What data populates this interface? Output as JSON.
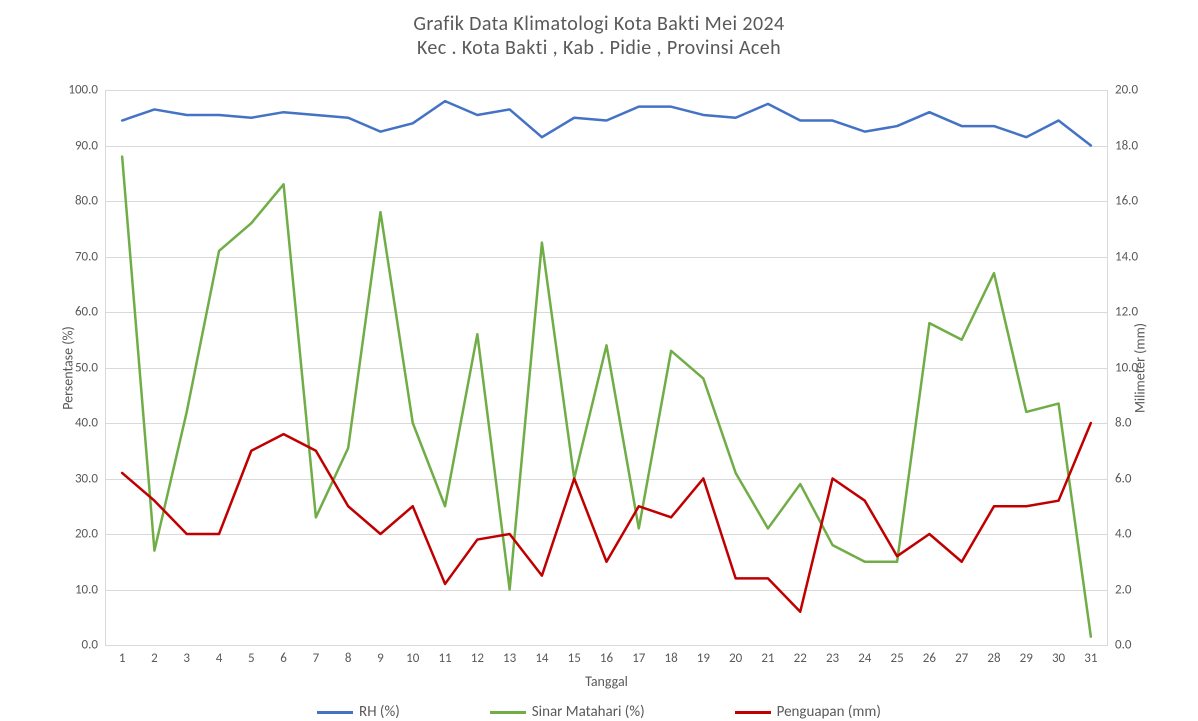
{
  "chart": {
    "type": "line",
    "background_color": "#ffffff",
    "grid_color": "#d9d9d9",
    "axis_color": "#d9d9d9",
    "title_line1": "Grafik Data Klimatologi Kota Bakti Mei 2024",
    "title_line2": "Kec . Kota Bakti , Kab . Pidie , Provinsi  Aceh",
    "title_fontsize": 20,
    "title_color": "#595959",
    "x_axis": {
      "label": "Tanggal",
      "label_fontsize": 14,
      "tick_fontsize": 13,
      "categories": [
        1,
        2,
        3,
        4,
        5,
        6,
        7,
        8,
        9,
        10,
        11,
        12,
        13,
        14,
        15,
        16,
        17,
        18,
        19,
        20,
        21,
        22,
        23,
        24,
        25,
        26,
        27,
        28,
        29,
        30,
        31
      ]
    },
    "y_axis_left": {
      "label": "Persentase (%)",
      "label_fontsize": 14,
      "min": 0.0,
      "max": 100.0,
      "step": 10.0,
      "tick_fontsize": 13,
      "ticks": [
        "0.0",
        "10.0",
        "20.0",
        "30.0",
        "40.0",
        "50.0",
        "60.0",
        "70.0",
        "80.0",
        "90.0",
        "100.0"
      ]
    },
    "y_axis_right": {
      "label": "Milimeter (mm)",
      "label_fontsize": 14,
      "min": 0.0,
      "max": 20.0,
      "step": 2.0,
      "tick_fontsize": 13,
      "ticks": [
        "0.0",
        "2.0",
        "4.0",
        "6.0",
        "8.0",
        "10.0",
        "12.0",
        "14.0",
        "16.0",
        "18.0",
        "20.0"
      ]
    },
    "series": [
      {
        "name": "RH (%)",
        "axis": "left",
        "color": "#4472c4",
        "line_width": 2.5,
        "values": [
          94.5,
          96.5,
          95.5,
          95.5,
          95.0,
          96.0,
          95.5,
          95.0,
          92.5,
          94.0,
          98.0,
          95.5,
          96.5,
          91.5,
          95.0,
          94.5,
          97.0,
          97.0,
          95.5,
          95.0,
          97.5,
          94.5,
          94.5,
          92.5,
          93.5,
          96.0,
          93.5,
          93.5,
          91.5,
          94.5,
          90.0
        ]
      },
      {
        "name": "Sinar Matahari (%)",
        "axis": "left",
        "color": "#70ad47",
        "line_width": 2.5,
        "values": [
          88.0,
          17.0,
          42.0,
          71.0,
          76.0,
          83.0,
          23.0,
          35.5,
          78.0,
          40.0,
          25.0,
          56.0,
          10.0,
          72.5,
          30.0,
          54.0,
          21.0,
          53.0,
          48.0,
          31.0,
          21.0,
          29.0,
          18.0,
          15.0,
          15.0,
          58.0,
          55.0,
          67.0,
          42.0,
          43.5,
          1.5
        ]
      },
      {
        "name": "Penguapan (mm)",
        "axis": "right",
        "color": "#c00000",
        "line_width": 2.5,
        "values": [
          6.2,
          5.2,
          4.0,
          4.0,
          7.0,
          7.6,
          7.0,
          5.0,
          4.0,
          5.0,
          2.2,
          3.8,
          4.0,
          2.5,
          6.0,
          3.0,
          5.0,
          4.6,
          6.0,
          2.4,
          2.4,
          1.2,
          6.0,
          5.2,
          3.2,
          4.0,
          3.0,
          5.0,
          5.0,
          5.2,
          8.0
        ]
      }
    ],
    "legend": {
      "position": "bottom",
      "fontsize": 15
    }
  }
}
